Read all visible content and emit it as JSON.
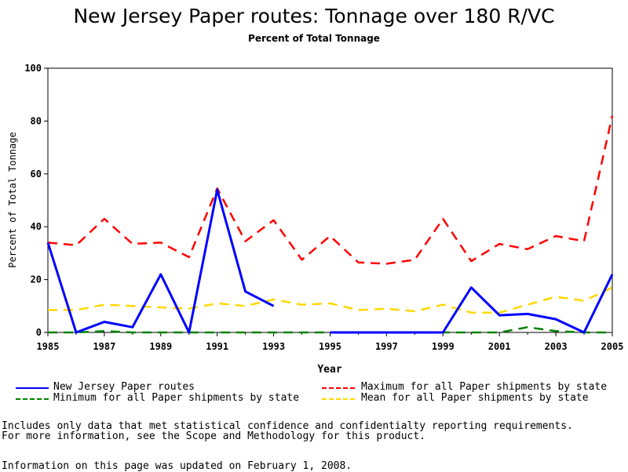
{
  "chart_data": {
    "type": "line",
    "title": "New Jersey Paper routes: Tonnage over 180 R/VC",
    "subtitle": "Percent of Total Tonnage",
    "xlabel": "Year",
    "ylabel": "Percent of Total Tonnage",
    "xlim": [
      1985,
      2005
    ],
    "ylim": [
      0,
      100
    ],
    "x_ticks": [
      "1985",
      "1987",
      "1989",
      "1991",
      "1993",
      "1995",
      "1997",
      "1999",
      "2001",
      "2003",
      "2005"
    ],
    "y_ticks": [
      "0",
      "20",
      "40",
      "60",
      "80",
      "100"
    ],
    "grid": false,
    "legend_position": "bottom",
    "series": [
      {
        "name": "New Jersey Paper routes",
        "color": "#0000ff",
        "style": "solid",
        "segments": [
          {
            "x": [
              1985,
              1986,
              1987,
              1988,
              1989,
              1990,
              1991,
              1992,
              1993
            ],
            "y": [
              34,
              0,
              4,
              2,
              22,
              0,
              54,
              15.5,
              10
            ]
          },
          {
            "x": [
              1995,
              1996,
              1997,
              1998,
              1999,
              2000,
              2001,
              2002,
              2003,
              2004,
              2005
            ],
            "y": [
              0,
              0,
              0,
              0,
              0,
              17,
              6.5,
              7,
              5,
              0,
              22
            ]
          }
        ]
      },
      {
        "name": "Maximum for all Paper shipments by state",
        "color": "#ff0000",
        "style": "dashed",
        "segments": [
          {
            "x": [
              1985,
              1986,
              1987,
              1988,
              1989,
              1990,
              1991,
              1992,
              1993,
              1994,
              1995,
              1996,
              1997,
              1998,
              1999,
              2000,
              2001,
              2002,
              2003,
              2004,
              2005
            ],
            "y": [
              34,
              33,
              43,
              33.5,
              34,
              28.5,
              54.5,
              34.5,
              42.5,
              27.5,
              36.5,
              26.5,
              26,
              27.5,
              43,
              27,
              33.5,
              31.5,
              36.5,
              34.5,
              82
            ]
          }
        ]
      },
      {
        "name": "Minimum for all Paper shipments by state",
        "color": "#008000",
        "style": "dashed",
        "segments": [
          {
            "x": [
              1985,
              1986,
              1987,
              1988,
              1989,
              1990,
              1991,
              1992,
              1993,
              1994,
              1995,
              1996,
              1997,
              1998,
              1999,
              2000,
              2001,
              2002,
              2003,
              2004,
              2005
            ],
            "y": [
              0,
              0,
              0.5,
              0,
              0,
              0,
              0,
              0,
              0,
              0,
              0,
              0,
              0,
              0,
              0,
              0,
              0,
              2,
              0.5,
              0,
              0
            ]
          }
        ]
      },
      {
        "name": "Mean for all Paper shipments by state",
        "color": "#ffd700",
        "style": "dashed",
        "segments": [
          {
            "x": [
              1985,
              1986,
              1987,
              1988,
              1989,
              1990,
              1991,
              1992,
              1993,
              1994,
              1995,
              1996,
              1997,
              1998,
              1999,
              2000,
              2001,
              2002,
              2003,
              2004,
              2005
            ],
            "y": [
              8.5,
              8.5,
              10.5,
              10,
              9.5,
              9,
              11,
              10,
              12.5,
              10.5,
              11,
              8.5,
              9,
              8,
              10.5,
              7.5,
              7.5,
              10.5,
              13.5,
              12,
              17
            ]
          }
        ]
      }
    ]
  },
  "legend": [
    {
      "label": "New Jersey Paper routes",
      "color": "#0000ff",
      "style": "solid"
    },
    {
      "label": "Maximum for all Paper shipments by state",
      "color": "#ff0000",
      "style": "dashed"
    },
    {
      "label": "Minimum for all Paper shipments by state",
      "color": "#008000",
      "style": "dashed"
    },
    {
      "label": "Mean for all Paper shipments by state",
      "color": "#ffd700",
      "style": "dashed"
    }
  ],
  "notes": {
    "line1": "Includes only data that met statistical confidence and confidentialty reporting requirements.",
    "line2": "For more information, see the Scope and Methodology for this product.",
    "updated": "Information on this page was updated on February 1, 2008."
  }
}
